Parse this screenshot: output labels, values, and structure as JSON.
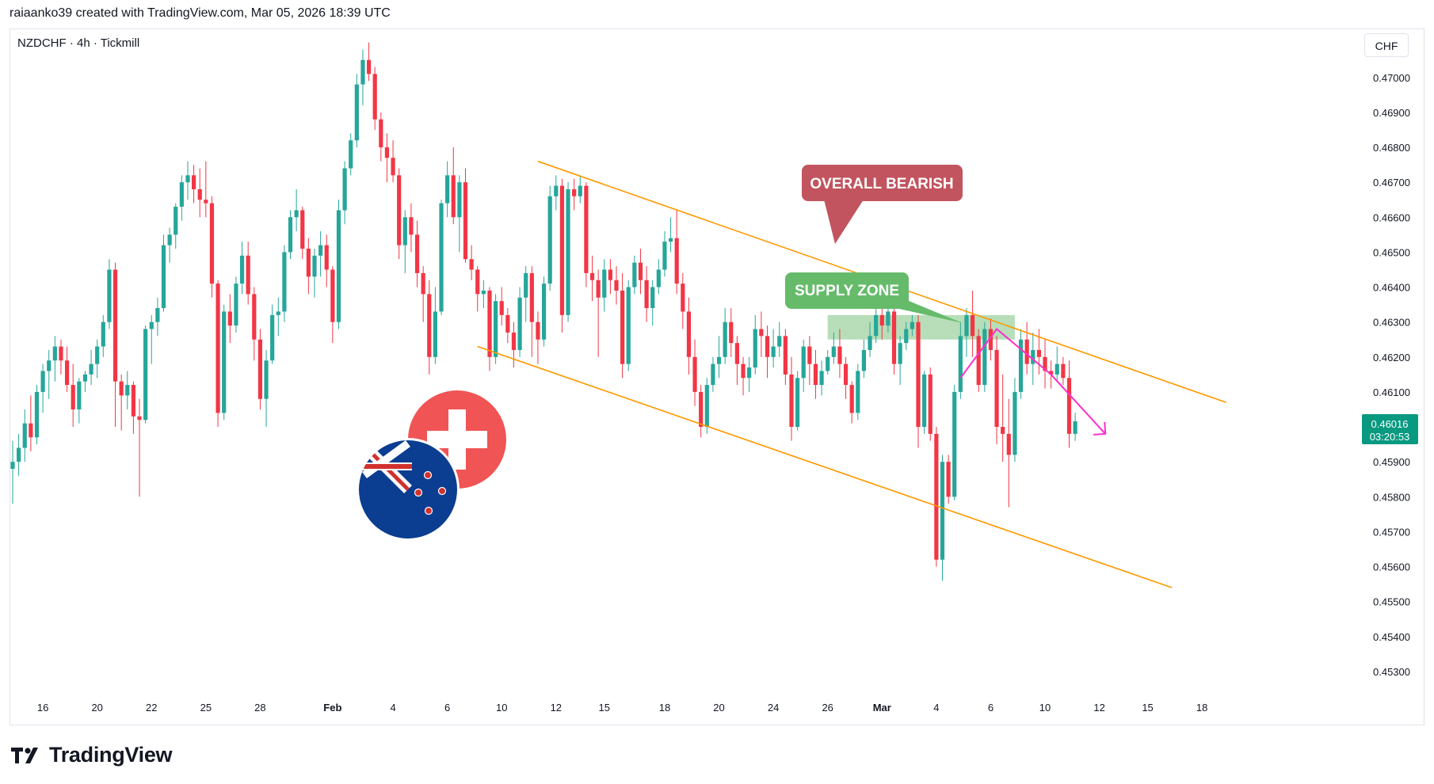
{
  "header": {
    "credit": "raiaanko39 created with TradingView.com, Mar 05, 2026 18:39 UTC"
  },
  "symbol": {
    "label": "NZDCHF · 4h · Tickmill"
  },
  "currency_button": {
    "label": "CHF"
  },
  "price_tag": {
    "price": "0.46016",
    "countdown": "03:20:53"
  },
  "annotations": {
    "bearish": "OVERALL BEARISH",
    "supply": "SUPPLY ZONE"
  },
  "brand": {
    "name": "TradingView"
  },
  "colors": {
    "up": "#26a69a",
    "down": "#f23645",
    "channel": "#ff9800",
    "zone": "#a5d6a7",
    "bearish_callout": "#c2545f",
    "supply_callout": "#66bb6a",
    "path": "#ff2ec8"
  },
  "chart_data": {
    "type": "candlestick",
    "title": "",
    "xlabel": "",
    "ylabel": "",
    "ylim": [
      0.4525,
      0.4714
    ],
    "y_ticks": [
      "0.47000",
      "0.46900",
      "0.46800",
      "0.46700",
      "0.46600",
      "0.46500",
      "0.46400",
      "0.46300",
      "0.46200",
      "0.46100",
      "0.46000",
      "0.45900",
      "0.45800",
      "0.45700",
      "0.45600",
      "0.45500",
      "0.45400",
      "0.45300"
    ],
    "x_ticks": [
      {
        "label": "16",
        "bar": 5,
        "bold": false
      },
      {
        "label": "20",
        "bar": 14,
        "bold": false
      },
      {
        "label": "22",
        "bar": 23,
        "bold": false
      },
      {
        "label": "25",
        "bar": 32,
        "bold": false
      },
      {
        "label": "28",
        "bar": 41,
        "bold": false
      },
      {
        "label": "Feb",
        "bar": 53,
        "bold": true
      },
      {
        "label": "4",
        "bar": 63,
        "bold": false
      },
      {
        "label": "6",
        "bar": 72,
        "bold": false
      },
      {
        "label": "10",
        "bar": 81,
        "bold": false
      },
      {
        "label": "12",
        "bar": 90,
        "bold": false
      },
      {
        "label": "15",
        "bar": 98,
        "bold": false
      },
      {
        "label": "18",
        "bar": 108,
        "bold": false
      },
      {
        "label": "20",
        "bar": 117,
        "bold": false
      },
      {
        "label": "24",
        "bar": 126,
        "bold": false
      },
      {
        "label": "26",
        "bar": 135,
        "bold": false
      },
      {
        "label": "Mar",
        "bar": 144,
        "bold": true
      },
      {
        "label": "4",
        "bar": 153,
        "bold": false
      },
      {
        "label": "6",
        "bar": 162,
        "bold": false
      },
      {
        "label": "10",
        "bar": 171,
        "bold": false
      },
      {
        "label": "12",
        "bar": 180,
        "bold": false
      },
      {
        "label": "15",
        "bar": 188,
        "bold": false
      },
      {
        "label": "18",
        "bar": 197,
        "bold": false
      }
    ],
    "ohlc": [
      [
        0.4588,
        0.4596,
        0.4578,
        0.459
      ],
      [
        0.459,
        0.4598,
        0.4586,
        0.4594
      ],
      [
        0.4594,
        0.4605,
        0.459,
        0.4601
      ],
      [
        0.4601,
        0.4609,
        0.4593,
        0.4597
      ],
      [
        0.4597,
        0.4612,
        0.4595,
        0.461
      ],
      [
        0.461,
        0.4618,
        0.4604,
        0.4616
      ],
      [
        0.4616,
        0.4622,
        0.4608,
        0.4619
      ],
      [
        0.4619,
        0.4626,
        0.4613,
        0.4623
      ],
      [
        0.4623,
        0.4625,
        0.4615,
        0.4619
      ],
      [
        0.4619,
        0.4623,
        0.461,
        0.4612
      ],
      [
        0.4612,
        0.4618,
        0.46,
        0.4605
      ],
      [
        0.4605,
        0.4614,
        0.4601,
        0.4613
      ],
      [
        0.4613,
        0.4616,
        0.461,
        0.4615
      ],
      [
        0.4615,
        0.4622,
        0.4612,
        0.4618
      ],
      [
        0.4618,
        0.4625,
        0.4614,
        0.4623
      ],
      [
        0.4623,
        0.4632,
        0.462,
        0.463
      ],
      [
        0.463,
        0.4648,
        0.4628,
        0.4645
      ],
      [
        0.4645,
        0.4647,
        0.46,
        0.4613
      ],
      [
        0.4613,
        0.4615,
        0.4599,
        0.4609
      ],
      [
        0.4609,
        0.4616,
        0.4605,
        0.4612
      ],
      [
        0.4612,
        0.4613,
        0.4598,
        0.4603
      ],
      [
        0.4603,
        0.4608,
        0.458,
        0.4602
      ],
      [
        0.4602,
        0.4629,
        0.4601,
        0.4628
      ],
      [
        0.4628,
        0.4632,
        0.4618,
        0.463
      ],
      [
        0.463,
        0.4637,
        0.4626,
        0.4634
      ],
      [
        0.4634,
        0.4655,
        0.4633,
        0.4652
      ],
      [
        0.4652,
        0.4657,
        0.4647,
        0.4655
      ],
      [
        0.4655,
        0.4664,
        0.4651,
        0.4663
      ],
      [
        0.4663,
        0.4672,
        0.4659,
        0.467
      ],
      [
        0.467,
        0.4676,
        0.4665,
        0.4672
      ],
      [
        0.4672,
        0.4675,
        0.4664,
        0.4668
      ],
      [
        0.4668,
        0.4674,
        0.466,
        0.4665
      ],
      [
        0.4665,
        0.4676,
        0.466,
        0.4664
      ],
      [
        0.4664,
        0.4666,
        0.4637,
        0.4641
      ],
      [
        0.4641,
        0.4642,
        0.46,
        0.4604
      ],
      [
        0.4604,
        0.4635,
        0.4602,
        0.4633
      ],
      [
        0.4633,
        0.4638,
        0.4624,
        0.4629
      ],
      [
        0.4629,
        0.4643,
        0.4627,
        0.4641
      ],
      [
        0.4641,
        0.4653,
        0.4638,
        0.4649
      ],
      [
        0.4649,
        0.4653,
        0.4635,
        0.4638
      ],
      [
        0.4638,
        0.464,
        0.4619,
        0.4625
      ],
      [
        0.4625,
        0.4628,
        0.4605,
        0.4608
      ],
      [
        0.4608,
        0.4622,
        0.46,
        0.4619
      ],
      [
        0.4619,
        0.4635,
        0.4618,
        0.4632
      ],
      [
        0.4632,
        0.4637,
        0.4626,
        0.4633
      ],
      [
        0.4633,
        0.4652,
        0.463,
        0.465
      ],
      [
        0.465,
        0.4662,
        0.4648,
        0.466
      ],
      [
        0.466,
        0.4668,
        0.4656,
        0.4662
      ],
      [
        0.4662,
        0.4663,
        0.4648,
        0.4651
      ],
      [
        0.4651,
        0.4654,
        0.4638,
        0.4643
      ],
      [
        0.4643,
        0.4651,
        0.4637,
        0.4649
      ],
      [
        0.4649,
        0.4656,
        0.4643,
        0.4652
      ],
      [
        0.4652,
        0.4655,
        0.464,
        0.4645
      ],
      [
        0.4645,
        0.4646,
        0.4624,
        0.463
      ],
      [
        0.463,
        0.4665,
        0.4628,
        0.4662
      ],
      [
        0.4662,
        0.4676,
        0.4658,
        0.4674
      ],
      [
        0.4674,
        0.4684,
        0.4672,
        0.4682
      ],
      [
        0.4682,
        0.4701,
        0.468,
        0.4698
      ],
      [
        0.4698,
        0.4708,
        0.4692,
        0.4705
      ],
      [
        0.4705,
        0.471,
        0.4699,
        0.4701
      ],
      [
        0.4701,
        0.4703,
        0.4685,
        0.4688
      ],
      [
        0.4688,
        0.469,
        0.4676,
        0.468
      ],
      [
        0.468,
        0.4684,
        0.467,
        0.4677
      ],
      [
        0.4677,
        0.4682,
        0.467,
        0.4672
      ],
      [
        0.4672,
        0.4674,
        0.4648,
        0.4652
      ],
      [
        0.4652,
        0.4662,
        0.4644,
        0.466
      ],
      [
        0.466,
        0.4664,
        0.465,
        0.4655
      ],
      [
        0.4655,
        0.4659,
        0.464,
        0.4644
      ],
      [
        0.4644,
        0.4646,
        0.463,
        0.4638
      ],
      [
        0.4638,
        0.4642,
        0.4615,
        0.462
      ],
      [
        0.462,
        0.464,
        0.4618,
        0.4633
      ],
      [
        0.4633,
        0.4665,
        0.4632,
        0.4664
      ],
      [
        0.4664,
        0.4676,
        0.466,
        0.4672
      ],
      [
        0.4672,
        0.468,
        0.4658,
        0.466
      ],
      [
        0.466,
        0.4672,
        0.465,
        0.467
      ],
      [
        0.467,
        0.4674,
        0.4647,
        0.4648
      ],
      [
        0.4648,
        0.4652,
        0.4642,
        0.4645
      ],
      [
        0.4645,
        0.4646,
        0.4633,
        0.4638
      ],
      [
        0.4638,
        0.4642,
        0.4634,
        0.4639
      ],
      [
        0.4639,
        0.464,
        0.4616,
        0.462
      ],
      [
        0.462,
        0.4638,
        0.4618,
        0.4636
      ],
      [
        0.4636,
        0.464,
        0.4629,
        0.4632
      ],
      [
        0.4632,
        0.4634,
        0.4624,
        0.4627
      ],
      [
        0.4627,
        0.463,
        0.4617,
        0.4622
      ],
      [
        0.4622,
        0.464,
        0.462,
        0.4637
      ],
      [
        0.4637,
        0.4646,
        0.463,
        0.4644
      ],
      [
        0.4644,
        0.4646,
        0.462,
        0.463
      ],
      [
        0.463,
        0.4633,
        0.4618,
        0.4625
      ],
      [
        0.4625,
        0.4643,
        0.4623,
        0.4641
      ],
      [
        0.4641,
        0.4669,
        0.4639,
        0.4666
      ],
      [
        0.4666,
        0.4672,
        0.4662,
        0.4669
      ],
      [
        0.4669,
        0.4671,
        0.4627,
        0.4632
      ],
      [
        0.4632,
        0.467,
        0.463,
        0.4668
      ],
      [
        0.4668,
        0.4671,
        0.4662,
        0.4666
      ],
      [
        0.4666,
        0.4672,
        0.4664,
        0.4669
      ],
      [
        0.4669,
        0.467,
        0.464,
        0.4644
      ],
      [
        0.4644,
        0.4649,
        0.4636,
        0.4642
      ],
      [
        0.4642,
        0.4645,
        0.462,
        0.4637
      ],
      [
        0.4637,
        0.4648,
        0.4633,
        0.4645
      ],
      [
        0.4645,
        0.4648,
        0.4638,
        0.4642
      ],
      [
        0.4642,
        0.4646,
        0.4635,
        0.4639
      ],
      [
        0.4639,
        0.4644,
        0.4614,
        0.4618
      ],
      [
        0.4618,
        0.4642,
        0.4616,
        0.464
      ],
      [
        0.464,
        0.4649,
        0.4638,
        0.4647
      ],
      [
        0.4647,
        0.4651,
        0.4638,
        0.4642
      ],
      [
        0.4642,
        0.4646,
        0.463,
        0.4634
      ],
      [
        0.4634,
        0.4642,
        0.4629,
        0.464
      ],
      [
        0.464,
        0.4648,
        0.4638,
        0.4645
      ],
      [
        0.4645,
        0.4656,
        0.4643,
        0.4653
      ],
      [
        0.4653,
        0.466,
        0.465,
        0.4654
      ],
      [
        0.4654,
        0.4662,
        0.4638,
        0.4641
      ],
      [
        0.4641,
        0.4644,
        0.4628,
        0.4633
      ],
      [
        0.4633,
        0.4637,
        0.4615,
        0.462
      ],
      [
        0.462,
        0.4625,
        0.4606,
        0.461
      ],
      [
        0.461,
        0.4612,
        0.4597,
        0.46
      ],
      [
        0.46,
        0.4614,
        0.4598,
        0.4612
      ],
      [
        0.4612,
        0.462,
        0.461,
        0.4618
      ],
      [
        0.4618,
        0.4626,
        0.4614,
        0.462
      ],
      [
        0.462,
        0.4634,
        0.4618,
        0.463
      ],
      [
        0.463,
        0.4634,
        0.462,
        0.4624
      ],
      [
        0.4624,
        0.4626,
        0.4612,
        0.4618
      ],
      [
        0.4618,
        0.462,
        0.4609,
        0.4614
      ],
      [
        0.4614,
        0.462,
        0.461,
        0.4617
      ],
      [
        0.4617,
        0.4632,
        0.4615,
        0.4628
      ],
      [
        0.4628,
        0.4633,
        0.462,
        0.4626
      ],
      [
        0.4626,
        0.4629,
        0.4614,
        0.462
      ],
      [
        0.462,
        0.4628,
        0.4617,
        0.4623
      ],
      [
        0.4623,
        0.463,
        0.462,
        0.4626
      ],
      [
        0.4626,
        0.4628,
        0.4612,
        0.4615
      ],
      [
        0.4615,
        0.462,
        0.4596,
        0.46
      ],
      [
        0.46,
        0.4616,
        0.4599,
        0.4614
      ],
      [
        0.4614,
        0.4625,
        0.461,
        0.4623
      ],
      [
        0.4623,
        0.4626,
        0.4612,
        0.4618
      ],
      [
        0.4618,
        0.4622,
        0.4608,
        0.4612
      ],
      [
        0.4612,
        0.4619,
        0.4609,
        0.4616
      ],
      [
        0.4616,
        0.4622,
        0.4615,
        0.462
      ],
      [
        0.462,
        0.4627,
        0.4618,
        0.4623
      ],
      [
        0.4623,
        0.4628,
        0.4614,
        0.4618
      ],
      [
        0.4618,
        0.462,
        0.4608,
        0.4612
      ],
      [
        0.4612,
        0.4613,
        0.4601,
        0.4604
      ],
      [
        0.4604,
        0.4618,
        0.4602,
        0.4616
      ],
      [
        0.4616,
        0.4625,
        0.4614,
        0.4622
      ],
      [
        0.4622,
        0.463,
        0.462,
        0.4626
      ],
      [
        0.4626,
        0.4634,
        0.4624,
        0.4632
      ],
      [
        0.4632,
        0.4639,
        0.4625,
        0.4629
      ],
      [
        0.4629,
        0.4641,
        0.4627,
        0.4633
      ],
      [
        0.4633,
        0.4635,
        0.4615,
        0.4618
      ],
      [
        0.4618,
        0.4626,
        0.4612,
        0.4624
      ],
      [
        0.4624,
        0.463,
        0.4622,
        0.4628
      ],
      [
        0.4628,
        0.4632,
        0.4626,
        0.463
      ],
      [
        0.463,
        0.4632,
        0.4594,
        0.46
      ],
      [
        0.46,
        0.4616,
        0.4598,
        0.4615
      ],
      [
        0.4615,
        0.4617,
        0.4596,
        0.4598
      ],
      [
        0.4598,
        0.46,
        0.456,
        0.4562
      ],
      [
        0.4562,
        0.4592,
        0.4556,
        0.459
      ],
      [
        0.459,
        0.4592,
        0.4578,
        0.458
      ],
      [
        0.458,
        0.4612,
        0.4579,
        0.461
      ],
      [
        0.461,
        0.463,
        0.4608,
        0.4626
      ],
      [
        0.4626,
        0.4634,
        0.462,
        0.4632
      ],
      [
        0.4632,
        0.4639,
        0.462,
        0.4626
      ],
      [
        0.4626,
        0.4628,
        0.461,
        0.4612
      ],
      [
        0.4612,
        0.463,
        0.461,
        0.4628
      ],
      [
        0.4628,
        0.4631,
        0.4619,
        0.4622
      ],
      [
        0.4622,
        0.4626,
        0.4595,
        0.46
      ],
      [
        0.46,
        0.4615,
        0.459,
        0.4598
      ],
      [
        0.4598,
        0.4608,
        0.4577,
        0.4592
      ],
      [
        0.4592,
        0.4614,
        0.459,
        0.461
      ],
      [
        0.461,
        0.4628,
        0.4608,
        0.4625
      ],
      [
        0.4625,
        0.463,
        0.4615,
        0.4618
      ],
      [
        0.4618,
        0.4627,
        0.4612,
        0.4622
      ],
      [
        0.4622,
        0.4628,
        0.4615,
        0.462
      ],
      [
        0.462,
        0.4625,
        0.4611,
        0.4616
      ],
      [
        0.4616,
        0.4619,
        0.4611,
        0.4615
      ],
      [
        0.4615,
        0.4623,
        0.4613,
        0.4618
      ],
      [
        0.4618,
        0.462,
        0.4612,
        0.4614
      ],
      [
        0.4614,
        0.4619,
        0.4594,
        0.4598
      ],
      [
        0.4598,
        0.4604,
        0.4596,
        0.46016
      ]
    ],
    "trend_lines": [
      {
        "name": "channel-upper",
        "from": [
          87,
          0.4676
        ],
        "to": [
          201,
          0.4607
        ]
      },
      {
        "name": "channel-lower",
        "from": [
          77,
          0.4623
        ],
        "to": [
          192,
          0.4554
        ]
      }
    ],
    "supply_zone": {
      "from_bar": 135,
      "to_bar": 166,
      "top": 0.4632,
      "bottom": 0.4625
    },
    "projection_path": [
      [
        157,
        0.4614
      ],
      [
        163,
        0.4628
      ],
      [
        172,
        0.4615
      ],
      [
        181,
        0.4598
      ]
    ]
  }
}
